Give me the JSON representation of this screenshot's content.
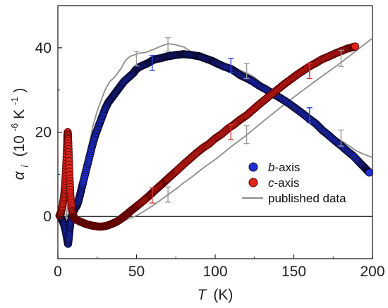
{
  "chart_data": {
    "type": "scatter",
    "xlabel": {
      "symbol": "T",
      "unit": "(K)"
    },
    "ylabel": {
      "symbol": "α",
      "subscript": "i",
      "unit": "(10",
      "exp": "-6",
      "unit2": " K",
      "exp2": "-1",
      "close": ")"
    },
    "xlim": [
      0,
      200
    ],
    "ylim": [
      -10,
      50
    ],
    "xticks": [
      0,
      50,
      100,
      150,
      200
    ],
    "yticks": [
      0,
      20,
      40
    ],
    "zero_line": true,
    "grid": false,
    "legend_position": "right-middle",
    "series": [
      {
        "name": "b-axis",
        "name_italic": "b",
        "name_rest": "-axis",
        "kind": "markers",
        "color": "#1f2fd6",
        "edge": "#0a0a30",
        "x": [
          2,
          3,
          4,
          5,
          6,
          6.5,
          7,
          7.5,
          8,
          9,
          10,
          11,
          12,
          13,
          14,
          15,
          16,
          18,
          20,
          22,
          24,
          26,
          28,
          30,
          32,
          34,
          36,
          38,
          40,
          42,
          45,
          48,
          50,
          52,
          55,
          58,
          60,
          62,
          65,
          68,
          70,
          72,
          75,
          78,
          80,
          82,
          85,
          88,
          90,
          92,
          95,
          98,
          100,
          103,
          106,
          110,
          113,
          116,
          120,
          124,
          128,
          132,
          136,
          140,
          144,
          148,
          152,
          156,
          160,
          164,
          168,
          172,
          176,
          180,
          184,
          188,
          192,
          195,
          197,
          198
        ],
        "y": [
          -0.3,
          -1.0,
          -2.0,
          -3.5,
          -5.5,
          -6.5,
          -5.0,
          -3.0,
          -1.5,
          0.2,
          1.2,
          2.0,
          2.5,
          3.5,
          5.0,
          6.5,
          8.0,
          11,
          14,
          17,
          19.5,
          21.5,
          23.5,
          25.5,
          27,
          28,
          29,
          30,
          31,
          32,
          33,
          34,
          35,
          35.5,
          36,
          36.5,
          37,
          37.3,
          37.5,
          37.8,
          38,
          38.1,
          38.3,
          38.4,
          38.5,
          38.4,
          38.3,
          38.1,
          38,
          37.7,
          37.3,
          36.9,
          36.5,
          36.0,
          35.5,
          35,
          34.3,
          33.5,
          32.8,
          32.0,
          31.0,
          30.2,
          29.3,
          28.4,
          27.5,
          26.5,
          25.4,
          24.3,
          23.1,
          22.0,
          20.5,
          19.3,
          18.0,
          16.8,
          15.5,
          14.3,
          12.7,
          11.6,
          10.8,
          10.4
        ]
      },
      {
        "name": "c-axis",
        "name_italic": "c",
        "name_rest": "-axis",
        "kind": "markers",
        "color": "#e0261b",
        "edge": "#5a0000",
        "x": [
          1,
          2,
          3,
          4,
          4.5,
          5,
          5.5,
          6,
          6.3,
          6.6,
          7,
          7.5,
          8,
          9,
          10,
          11,
          12,
          14,
          16,
          18,
          20,
          22,
          24,
          26,
          28,
          30,
          32,
          34,
          36,
          38,
          40,
          42,
          44,
          46,
          48,
          50,
          52,
          55,
          58,
          60,
          62,
          65,
          68,
          70,
          73,
          76,
          80,
          84,
          88,
          92,
          96,
          100,
          104,
          108,
          112,
          116,
          120,
          124,
          128,
          132,
          136,
          140,
          144,
          148,
          152,
          156,
          160,
          164,
          168,
          172,
          176,
          180,
          184,
          187,
          189
        ],
        "y": [
          0.2,
          1.0,
          2.5,
          5.0,
          7.0,
          10.0,
          14.0,
          18.5,
          20.0,
          18.0,
          14.0,
          9.0,
          5.0,
          1.5,
          0.0,
          -0.6,
          -0.8,
          -1.2,
          -1.5,
          -1.8,
          -2.0,
          -2.2,
          -2.3,
          -2.4,
          -2.4,
          -2.3,
          -2.1,
          -1.8,
          -1.5,
          -1.1,
          -0.6,
          0.0,
          0.6,
          1.2,
          1.8,
          2.4,
          3.0,
          3.9,
          4.9,
          5.6,
          6.3,
          7.3,
          8.3,
          9.0,
          10.0,
          11.0,
          12.4,
          13.7,
          15.0,
          16.2,
          17.2,
          18.5,
          19.5,
          20.8,
          21.8,
          23.0,
          24.0,
          25.3,
          26.6,
          27.8,
          29.0,
          30.2,
          31.4,
          32.5,
          33.6,
          34.6,
          35.6,
          36.4,
          37.3,
          37.9,
          38.6,
          39.2,
          39.8,
          40.1,
          40.3
        ]
      },
      {
        "name": "published data",
        "kind": "line",
        "color": "#8c8c8c",
        "x": [
          0,
          2,
          3,
          4,
          5,
          6,
          7,
          8,
          9,
          10,
          12,
          15,
          18,
          20,
          22,
          25,
          28,
          30,
          33,
          36,
          40,
          43,
          46,
          50,
          53,
          56,
          60,
          65,
          70,
          75,
          80,
          85,
          90,
          95,
          100,
          105,
          110,
          115,
          120,
          125,
          130,
          135,
          140,
          145,
          150,
          155,
          160,
          165,
          170,
          175,
          180,
          185,
          190,
          195,
          200
        ],
        "y": [
          0,
          -1.0,
          -2.2,
          -3.0,
          -1.5,
          2.0,
          4.5,
          2.0,
          0.5,
          0.5,
          2.5,
          8,
          13,
          17,
          21,
          25,
          28,
          30,
          32,
          33,
          35,
          37,
          38,
          38.5,
          38.8,
          38.9,
          39.5,
          40.3,
          41,
          40.7,
          40.2,
          39.0,
          38.5,
          38.0,
          37.5,
          36.5,
          35.5,
          34.8,
          34.0,
          33.0,
          31.5,
          30.0,
          28.8,
          27.3,
          26.0,
          24.5,
          23.0,
          21.5,
          20.3,
          19.0,
          18.0,
          16.8,
          15.5,
          14.7,
          14.0
        ]
      },
      {
        "name": "",
        "kind": "line-nolegend",
        "color": "#8c8c8c",
        "x": [
          0,
          5,
          8,
          10,
          12,
          15,
          18,
          20,
          25,
          30,
          35,
          40,
          45,
          50,
          55,
          60,
          65,
          70,
          75,
          80,
          85,
          90,
          95,
          100,
          110,
          120,
          130,
          140,
          150,
          160,
          170,
          180,
          190,
          200
        ],
        "y": [
          0,
          0.5,
          0.0,
          -0.5,
          -1.0,
          -1.5,
          -1.8,
          -2.0,
          -2.3,
          -2.5,
          -2.2,
          -1.5,
          -0.5,
          0.2,
          1.3,
          2.5,
          3.8,
          5.2,
          6.5,
          8.0,
          9.3,
          10.8,
          12.2,
          13.5,
          16.5,
          19.3,
          22.4,
          25.4,
          28.3,
          31.1,
          33.8,
          36.5,
          39.4,
          42.3
        ]
      }
    ],
    "error_bars": [
      {
        "series": "b-axis",
        "color": "#2b4bd8",
        "points": [
          {
            "x": 60,
            "y": 36.4,
            "err": 1.8
          },
          {
            "x": 110,
            "y": 35.8,
            "err": 1.7
          },
          {
            "x": 160,
            "y": 24.0,
            "err": 1.8
          }
        ]
      },
      {
        "series": "c-axis",
        "color": "#e03a30",
        "points": [
          {
            "x": 60,
            "y": 5.0,
            "err": 1.8
          },
          {
            "x": 110,
            "y": 20.0,
            "err": 1.8
          },
          {
            "x": 160,
            "y": 34.5,
            "err": 1.8
          }
        ]
      },
      {
        "series": "published data",
        "color": "#9a9a9a",
        "points": [
          {
            "x": 50,
            "y": 37.4,
            "err": 1.7
          },
          {
            "x": 70,
            "y": 40.8,
            "err": 1.6
          },
          {
            "x": 120,
            "y": 34.5,
            "err": 1.8
          },
          {
            "x": 180,
            "y": 37.5,
            "err": 1.9
          },
          {
            "x": 70,
            "y": 5.2,
            "err": 1.8
          },
          {
            "x": 120,
            "y": 19.4,
            "err": 2.1
          },
          {
            "x": 180,
            "y": 18.6,
            "err": 1.9
          }
        ]
      }
    ]
  }
}
